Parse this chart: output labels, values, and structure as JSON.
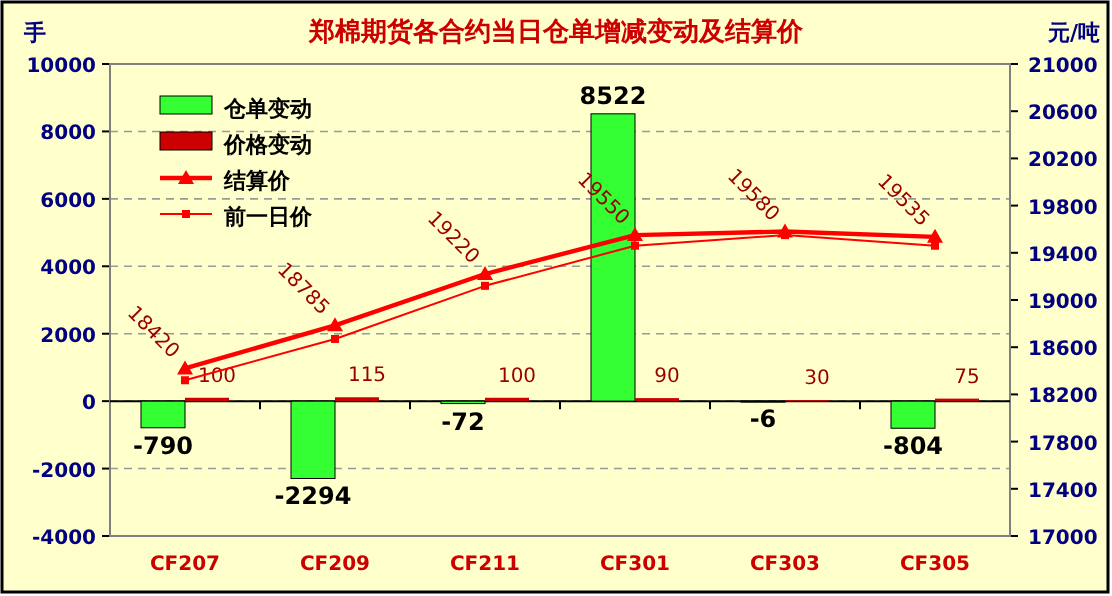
{
  "chart_data": {
    "type": "bar",
    "title": "郑棉期货各合约当日仓单增减变动及结算价",
    "ylabel": "手",
    "y2label": "元/吨",
    "categories": [
      "CF207",
      "CF209",
      "CF211",
      "CF301",
      "CF303",
      "CF305"
    ],
    "series": [
      {
        "name": "仓单变动",
        "color": "#33ff33",
        "values": [
          -790,
          -2294,
          -72,
          8522,
          -6,
          -804
        ],
        "value_labels": [
          "-790",
          "-2294",
          "-72",
          "8522",
          "-6",
          "-804"
        ]
      },
      {
        "name": "价格变动",
        "color": "#cc0000",
        "values": [
          100,
          115,
          100,
          90,
          30,
          75
        ],
        "value_labels": [
          "100",
          "115",
          "100",
          "90",
          "30",
          "75"
        ]
      },
      {
        "name": "结算价",
        "type": "line",
        "axis": "y2",
        "marker": "triangle",
        "color": "#ff0000",
        "values": [
          18420,
          18785,
          19220,
          19550,
          19580,
          19535
        ],
        "value_labels": [
          "18420",
          "18785",
          "19220",
          "19550",
          "19580",
          "19535"
        ]
      },
      {
        "name": "前一日价",
        "type": "line",
        "axis": "y2",
        "marker": "square",
        "color": "#ff0000",
        "values": [
          18320,
          18670,
          19120,
          19460,
          19550,
          19460
        ]
      }
    ],
    "ylim": [
      -4000,
      10000
    ],
    "yticks": [
      -4000,
      -2000,
      0,
      2000,
      4000,
      6000,
      8000,
      10000
    ],
    "y2lim": [
      17000,
      21000
    ],
    "y2ticks": [
      17000,
      17400,
      17800,
      18200,
      18600,
      19000,
      19400,
      19800,
      20200,
      20600,
      21000
    ],
    "grid": "y",
    "legend": "top left"
  }
}
